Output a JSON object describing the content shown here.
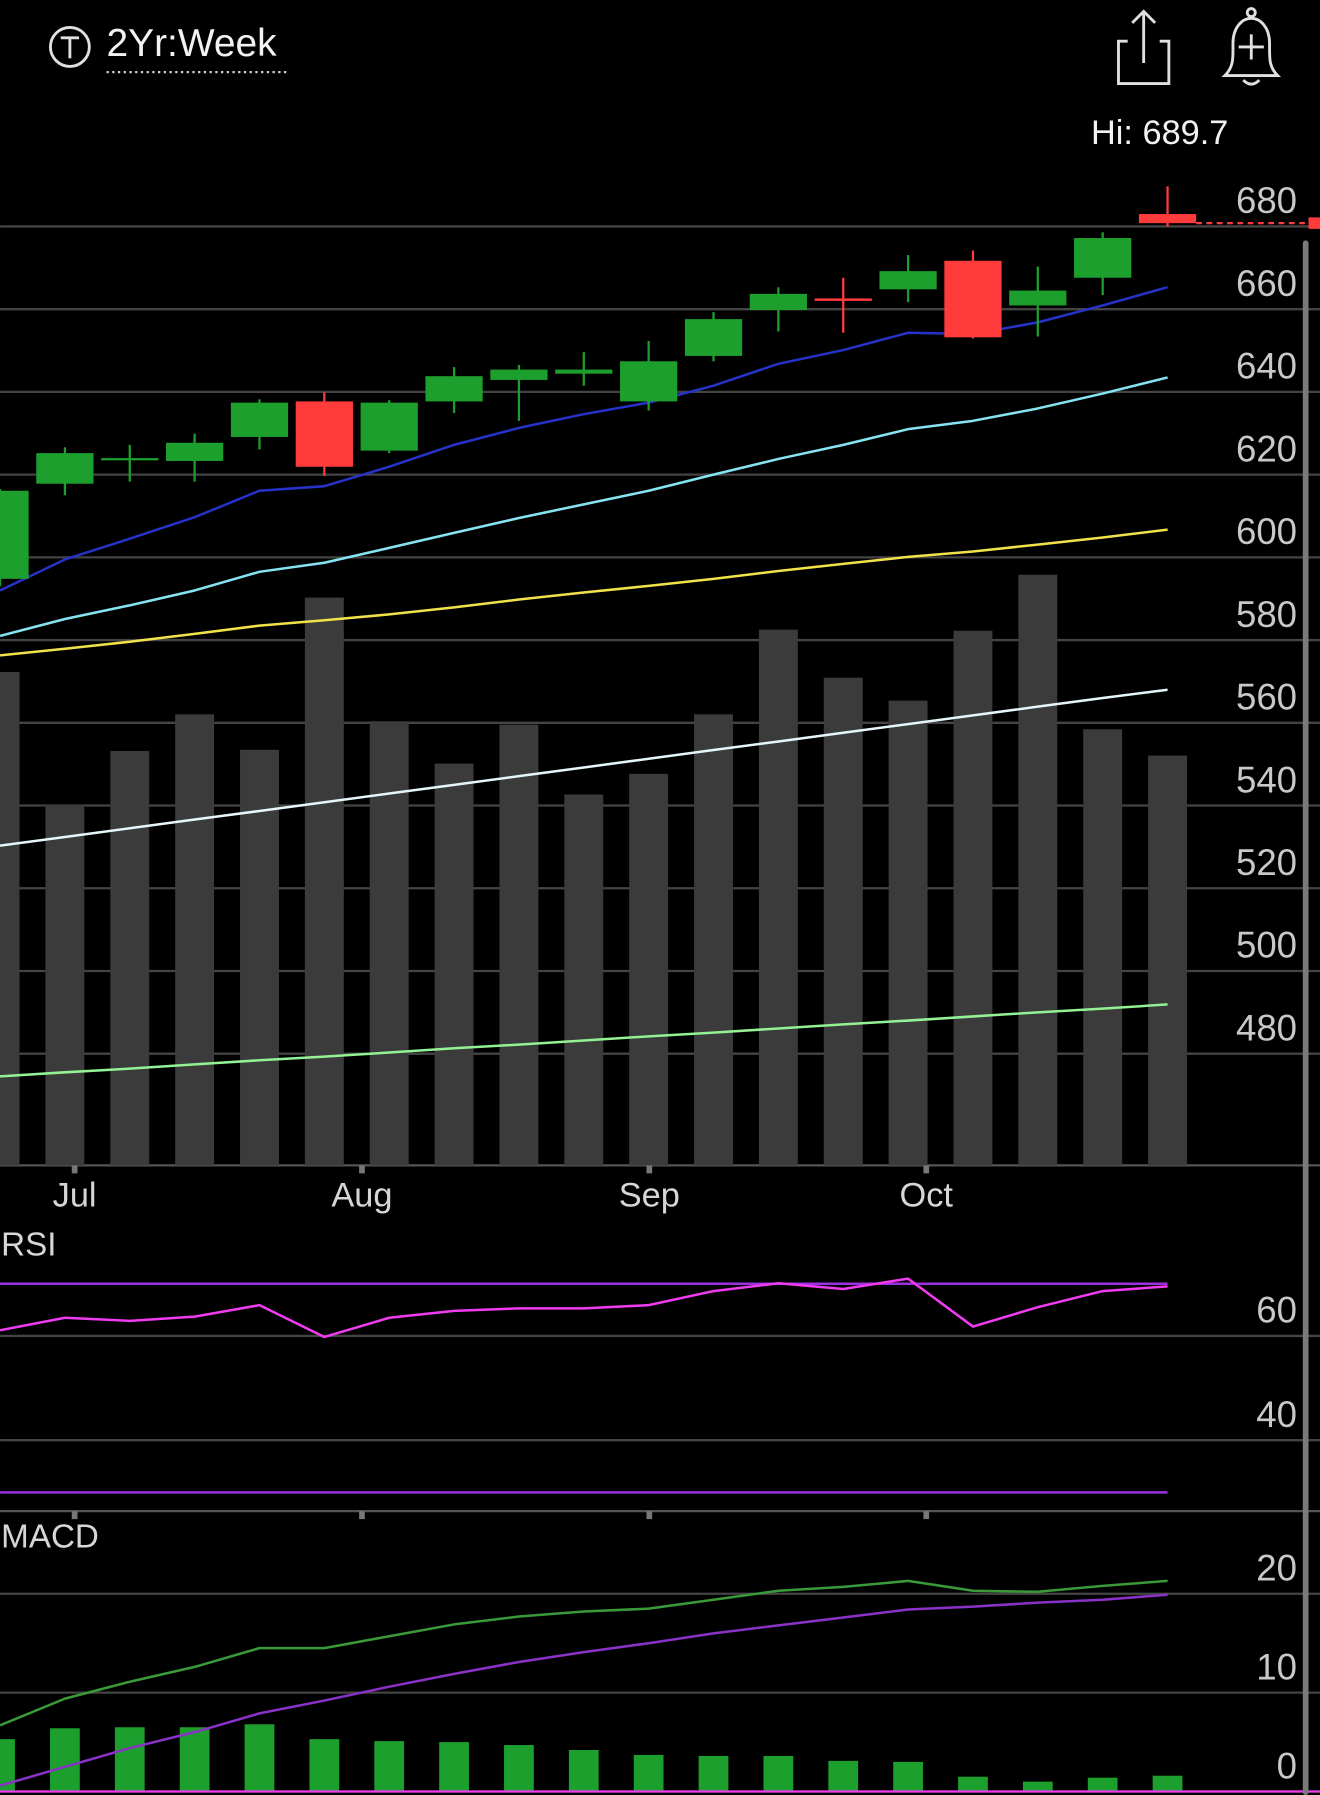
{
  "header": {
    "period": "2Yr:Week",
    "hi_label": "Hi: 689.7"
  },
  "chart_data": [
    {
      "type": "candlestick",
      "x": [
        0,
        1,
        2,
        3,
        4,
        5,
        6,
        7,
        8,
        9,
        10,
        11,
        12,
        13,
        14,
        15,
        16,
        17,
        18
      ],
      "xlim": [
        0,
        20.35
      ],
      "xticks": [
        {
          "value": 1.15,
          "label": "Jul"
        },
        {
          "value": 5.58,
          "label": "Aug"
        },
        {
          "value": 10.01,
          "label": "Sep"
        },
        {
          "value": 14.28,
          "label": "Oct"
        }
      ],
      "open": [
        594.8,
        617.8,
        623.6,
        623.3,
        629.1,
        637.7,
        625.8,
        637.7,
        642.9,
        644.4,
        637.7,
        648.7,
        659.8,
        662.6,
        664.8,
        671.7,
        660.9,
        667.6,
        683.0
      ],
      "high": [
        616.5,
        626.6,
        627.2,
        629.9,
        638.2,
        639.9,
        638.0,
        646.0,
        646.5,
        649.6,
        652.3,
        659.3,
        665.3,
        667.6,
        673.1,
        674.2,
        670.3,
        678.6,
        689.7
      ],
      "low": [
        593.0,
        615.0,
        618.3,
        618.3,
        626.1,
        619.7,
        625.2,
        634.9,
        633.0,
        641.5,
        635.5,
        647.4,
        654.6,
        654.3,
        661.7,
        652.9,
        653.4,
        663.4,
        680.0
      ],
      "close": [
        616.1,
        625.2,
        624.0,
        627.7,
        637.4,
        621.9,
        637.4,
        643.8,
        645.4,
        645.4,
        647.4,
        657.6,
        663.7,
        662.0,
        669.2,
        653.2,
        664.5,
        677.2,
        680.8
      ],
      "up_color": "#1c9f2c",
      "down_color": "#ff3b3b",
      "series": [
        {
          "color": "#2633c8",
          "values": [
            592.0,
            599.5,
            604.5,
            609.7,
            616.1,
            617.2,
            621.9,
            627.2,
            631.3,
            634.6,
            637.4,
            641.5,
            646.8,
            650.1,
            654.3,
            654.0,
            656.8,
            660.9,
            665.3
          ]
        },
        {
          "color": "#86e4f2",
          "values": [
            581.0,
            585.1,
            588.4,
            592.0,
            596.5,
            598.7,
            602.3,
            605.9,
            609.5,
            612.8,
            616.1,
            620.0,
            623.8,
            627.2,
            631.0,
            633.0,
            636.0,
            639.6,
            643.5
          ]
        },
        {
          "color": "#f2e24a",
          "values": [
            576.3,
            577.9,
            579.6,
            581.5,
            583.5,
            584.8,
            586.2,
            587.9,
            589.8,
            591.5,
            593.1,
            594.8,
            596.7,
            598.4,
            600.1,
            601.4,
            603.1,
            604.8,
            606.7
          ]
        },
        {
          "color": "#e4f6fa",
          "values": [
            530.3,
            532.4,
            534.5,
            536.6,
            538.7,
            540.8,
            542.9,
            545.0,
            547.1,
            549.2,
            551.3,
            553.4,
            555.5,
            557.6,
            559.7,
            561.8,
            563.9,
            566.0,
            568.0
          ]
        },
        {
          "color": "#94f294",
          "values": [
            474.5,
            475.5,
            476.4,
            477.4,
            478.4,
            479.3,
            480.3,
            481.3,
            482.2,
            483.2,
            484.2,
            485.1,
            486.1,
            487.1,
            488.0,
            489.0,
            490.0,
            490.9,
            491.9
          ]
        }
      ],
      "volume": {
        "color": "#3b3b3b",
        "ylim": [
          0,
          878
        ],
        "values": [
          431,
          315,
          362,
          394,
          363,
          496,
          388,
          351,
          385,
          324,
          342,
          394,
          468,
          426,
          406,
          467,
          516,
          381,
          358
        ]
      },
      "ylim": [
        453,
        696
      ],
      "yticks": [
        480,
        500,
        520,
        540,
        560,
        580,
        600,
        620,
        640,
        660,
        680
      ],
      "grid": true
    },
    {
      "type": "line",
      "label": "RSI",
      "series": [
        {
          "color": "#f03cf0",
          "values": [
            61.1,
            63.5,
            62.9,
            63.7,
            65.9,
            59.8,
            63.5,
            64.8,
            65.3,
            65.3,
            65.9,
            68.6,
            70.1,
            69.0,
            71.0,
            61.8,
            65.5,
            68.6,
            69.5
          ]
        }
      ],
      "levels": {
        "color": "#9a30e0",
        "values": [
          70,
          30
        ]
      },
      "ylim": [
        26.4,
        80.2
      ],
      "yticks": [
        40,
        60
      ],
      "grid": true
    },
    {
      "type": "line",
      "label": "MACD",
      "series": [
        {
          "color": "#3a9a3a",
          "values": [
            6.7,
            9.4,
            11.1,
            12.6,
            14.5,
            14.5,
            15.7,
            16.9,
            17.7,
            18.2,
            18.5,
            19.4,
            20.3,
            20.7,
            21.3,
            20.3,
            20.2,
            20.8,
            21.3
          ]
        },
        {
          "color": "#8a32c8",
          "values": [
            0.6,
            2.5,
            4.4,
            6.0,
            7.9,
            9.2,
            10.6,
            11.9,
            13.1,
            14.1,
            15.0,
            16.0,
            16.8,
            17.6,
            18.4,
            18.7,
            19.1,
            19.4,
            19.9
          ]
        }
      ],
      "histogram": {
        "color": "#1c9f2c",
        "zero_color": "#f03cf0",
        "values": [
          5.3,
          6.4,
          6.5,
          6.5,
          6.8,
          5.3,
          5.1,
          5.0,
          4.7,
          4.2,
          3.7,
          3.6,
          3.6,
          3.1,
          3.0,
          1.5,
          1.0,
          1.4,
          1.6
        ]
      },
      "ylim": [
        -0.35,
        27.2
      ],
      "yticks": [
        0,
        10,
        20
      ],
      "grid": true
    }
  ]
}
